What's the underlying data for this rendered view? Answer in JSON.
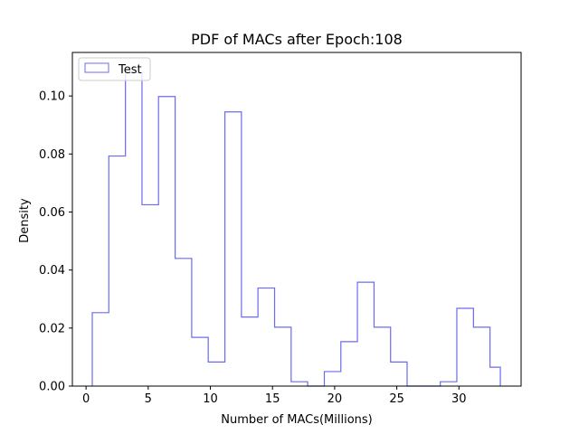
{
  "chart_data": {
    "type": "histogram",
    "title": "PDF of MACs after Epoch:108",
    "xlabel": "Number of MACs(Millions)",
    "ylabel": "Density",
    "xlim": [
      -1.1,
      35.0
    ],
    "ylim": [
      0.0,
      0.115
    ],
    "xticks": [
      0,
      5,
      10,
      15,
      20,
      25,
      30
    ],
    "yticks": [
      0.0,
      0.02,
      0.04,
      0.06,
      0.08,
      0.1
    ],
    "ytick_labels": [
      "0.00",
      "0.02",
      "0.04",
      "0.06",
      "0.08",
      "0.10"
    ],
    "grid": false,
    "legend": {
      "location": "upper left"
    },
    "series": [
      {
        "name": "Test",
        "style": "step",
        "color": "#6b6bf0",
        "bin_edges": [
          0.5,
          1.83,
          3.17,
          4.5,
          5.83,
          7.17,
          8.5,
          9.83,
          11.17,
          12.5,
          13.83,
          15.17,
          16.5,
          17.83,
          19.17,
          20.5,
          21.83,
          23.17,
          24.5,
          25.83,
          27.17,
          28.5,
          29.83,
          31.17,
          32.5,
          33.33
        ],
        "values": [
          0.0253,
          0.0793,
          0.108,
          0.0625,
          0.0998,
          0.044,
          0.0168,
          0.0083,
          0.0945,
          0.0238,
          0.0338,
          0.0203,
          0.0015,
          0.0,
          0.005,
          0.0153,
          0.0358,
          0.0203,
          0.0083,
          0.0,
          0.0,
          0.0015,
          0.0268,
          0.0203,
          0.0065
        ]
      }
    ]
  }
}
